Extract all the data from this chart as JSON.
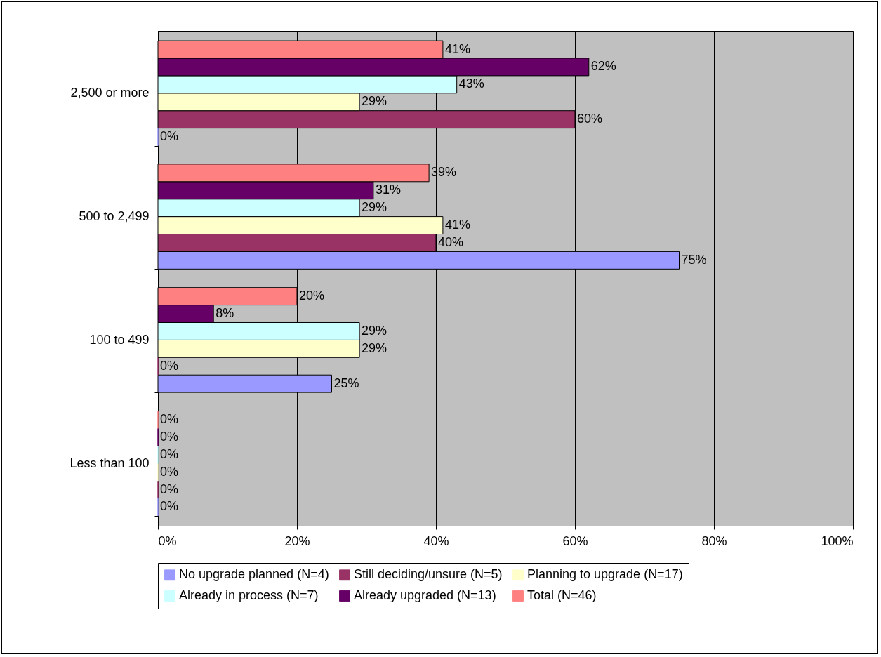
{
  "chart_data": {
    "type": "bar",
    "orientation": "horizontal",
    "categories": [
      "2,500 or more",
      "500 to 2,499",
      "100 to 499",
      "Less than 100"
    ],
    "xlim": [
      0,
      100
    ],
    "xticks": [
      {
        "value": 0,
        "label": "0%"
      },
      {
        "value": 20,
        "label": "20%"
      },
      {
        "value": 40,
        "label": "40%"
      },
      {
        "value": 60,
        "label": "60%"
      },
      {
        "value": 80,
        "label": "80%"
      },
      {
        "value": 100,
        "label": "100%"
      }
    ],
    "grid": "x",
    "legend": "bottom",
    "series": [
      {
        "name": "No upgrade planned (N=4)",
        "color": "#9999ff",
        "values": [
          0,
          75,
          25,
          0
        ],
        "value_labels": [
          "0%",
          "75%",
          "25%",
          "0%"
        ]
      },
      {
        "name": "Still deciding/unsure (N=5)",
        "color": "#993366",
        "values": [
          60,
          40,
          0,
          0
        ],
        "value_labels": [
          "60%",
          "40%",
          "0%",
          "0%"
        ]
      },
      {
        "name": "Planning to upgrade (N=17)",
        "color": "#ffffcc",
        "values": [
          29,
          41,
          29,
          0
        ],
        "value_labels": [
          "29%",
          "41%",
          "29%",
          "0%"
        ]
      },
      {
        "name": "Already in process (N=7)",
        "color": "#ccffff",
        "values": [
          43,
          29,
          29,
          0
        ],
        "value_labels": [
          "43%",
          "29%",
          "29%",
          "0%"
        ]
      },
      {
        "name": "Already upgraded (N=13)",
        "color": "#660066",
        "values": [
          62,
          31,
          8,
          0
        ],
        "value_labels": [
          "62%",
          "31%",
          "8%",
          "0%"
        ]
      },
      {
        "name": "Total (N=46)",
        "color": "#ff8080",
        "values": [
          41,
          39,
          20,
          0
        ],
        "value_labels": [
          "41%",
          "39%",
          "20%",
          "0%"
        ]
      }
    ]
  }
}
